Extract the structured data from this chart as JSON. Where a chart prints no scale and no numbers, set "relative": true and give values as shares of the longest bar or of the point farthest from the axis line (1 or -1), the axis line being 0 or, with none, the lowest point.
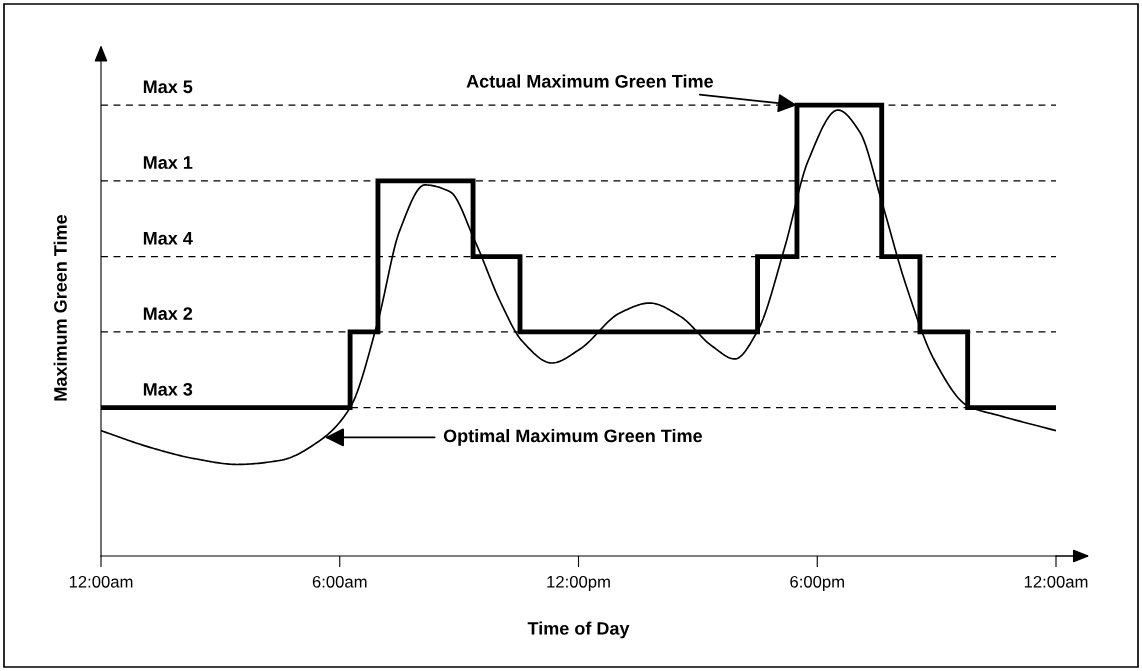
{
  "chart_data": {
    "type": "step",
    "relative": true,
    "xlabel": "Time of Day",
    "ylabel": "Maximum Green Time",
    "xlim": [
      0,
      24
    ],
    "xticks": [
      {
        "value": 0,
        "label": "12:00am"
      },
      {
        "value": 6,
        "label": "6:00am"
      },
      {
        "value": 12,
        "label": "12:00pm"
      },
      {
        "value": 18,
        "label": "6:00pm"
      },
      {
        "value": 24,
        "label": "12:00am"
      }
    ],
    "tick_labels": "x",
    "grid": false,
    "legend": false,
    "series": [
      {
        "color": "#000000",
        "x": [
          0,
          6.26,
          6.96,
          9.35,
          10.53,
          16.5,
          17.49,
          19.62,
          20.58,
          21.78,
          24
        ],
        "values": [
          0.329,
          0.497,
          0.832,
          0.664,
          0.497,
          0.664,
          1,
          0.664,
          0.497,
          0.329,
          0.329
        ]
      },
      {
        "type": "line",
        "color": "#000000",
        "x": [
          0,
          1.23,
          2.4,
          3.42,
          4.5,
          5.5,
          6.26,
          6.96,
          7.5,
          8.14,
          8.77,
          9.4,
          10.03,
          10.58,
          11.33,
          12.04,
          13.04,
          13.79,
          14.55,
          15.35,
          15.93,
          16.5,
          17.19,
          17.76,
          18.52,
          19.07,
          19.62,
          20.2,
          20.95,
          21.78,
          22.59,
          24
        ],
        "values": [
          0.278,
          0.241,
          0.215,
          0.203,
          0.212,
          0.256,
          0.329,
          0.521,
          0.72,
          0.823,
          0.808,
          0.698,
          0.565,
          0.477,
          0.428,
          0.459,
          0.539,
          0.561,
          0.532,
          0.466,
          0.437,
          0.499,
          0.687,
          0.874,
          0.989,
          0.94,
          0.786,
          0.609,
          0.433,
          0.333,
          0.311,
          0.278
        ]
      }
    ],
    "ref_lines": [
      {
        "axis": "y",
        "value": 0.329,
        "label": "Max 3",
        "color": "#000000",
        "line_style": "dashed"
      },
      {
        "axis": "y",
        "value": 0.497,
        "label": "Max 2",
        "color": "#000000",
        "line_style": "dashed"
      },
      {
        "axis": "y",
        "value": 0.664,
        "label": "Max 4",
        "color": "#000000",
        "line_style": "dashed"
      },
      {
        "axis": "y",
        "value": 0.832,
        "label": "Max 1",
        "color": "#000000",
        "line_style": "dashed"
      },
      {
        "axis": "y",
        "value": 1,
        "label": "Max 5",
        "color": "#000000",
        "line_style": "dashed"
      }
    ],
    "annotations": [
      {
        "text": "Actual Maximum Green Time",
        "x": 17.49,
        "y": 1
      },
      {
        "text": "Optimal Maximum Green Time",
        "x": 5.63,
        "y": 0.263
      }
    ]
  }
}
